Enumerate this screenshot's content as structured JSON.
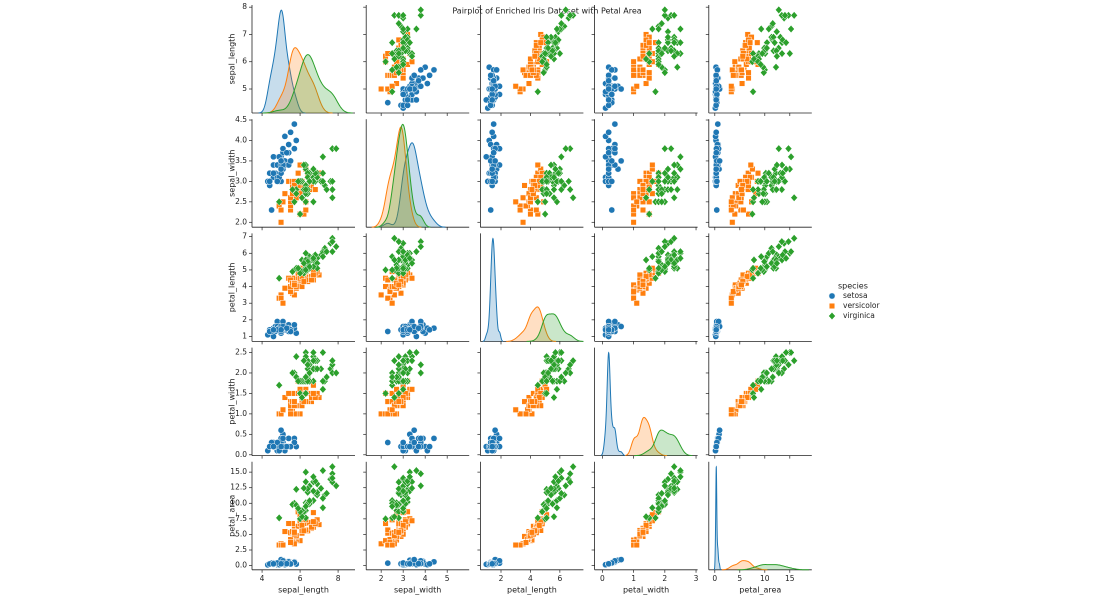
{
  "chart_data": {
    "type": "pairplot",
    "title": "Pairplot of Enriched Iris Dataset with Petal Area",
    "variables": [
      "sepal_length",
      "sepal_width",
      "petal_length",
      "petal_width",
      "petal_area"
    ],
    "axes": [
      {
        "xlim": [
          3.47,
          8.89
        ],
        "xticks": [
          4,
          6,
          8
        ],
        "ylim": [
          4.12,
          8.08
        ],
        "yticks": [
          5,
          6,
          7,
          8
        ]
      },
      {
        "xlim": [
          1.32,
          6.0
        ],
        "xticks": [
          2,
          3,
          4,
          5
        ],
        "ylim": [
          1.88,
          4.52
        ],
        "yticks": [
          {
            "value": 2,
            "label": "2.0"
          },
          2.5,
          {
            "value": 3,
            "label": "3.0"
          },
          3.5,
          {
            "value": 4,
            "label": "4.0"
          },
          4.5
        ]
      },
      {
        "xlim": [
          0.6,
          7.6
        ],
        "xticks": [
          2,
          4,
          6
        ],
        "ylim": [
          0.705,
          7.195
        ],
        "yticks": [
          1,
          2,
          3,
          4,
          5,
          6,
          7
        ]
      },
      {
        "xlim": [
          -0.25,
          3.05
        ],
        "xticks": [
          0,
          1,
          2,
          3
        ],
        "ylim": [
          -0.02,
          2.62
        ],
        "yticks": [
          {
            "value": 0,
            "label": "0.0"
          },
          0.5,
          {
            "value": 1,
            "label": "1.0"
          },
          1.5,
          {
            "value": 2,
            "label": "2.0"
          },
          2.5
        ]
      },
      {
        "xlim": [
          -1.2,
          19.4
        ],
        "xticks": [
          0,
          5,
          10,
          15
        ],
        "ylim": [
          -0.678,
          16.658
        ],
        "yticks": [
          {
            "value": 0,
            "label": "0.0"
          },
          2.5,
          {
            "value": 5,
            "label": "5.0"
          },
          7.5,
          {
            "value": 10,
            "label": "10.0"
          },
          12.5,
          {
            "value": 15,
            "label": "15.0"
          }
        ]
      }
    ],
    "legend_title": "species",
    "legend": "right",
    "series": [
      {
        "name": "setosa",
        "color": "#1f77b4",
        "marker": "circle",
        "values": [
          [
            5.1,
            4.9,
            4.7,
            4.6,
            5.0,
            5.4,
            4.6,
            5.0,
            4.4,
            4.9,
            5.4,
            4.8,
            4.8,
            4.3,
            5.8,
            5.7,
            5.4,
            5.1,
            5.7,
            5.1,
            5.4,
            5.1,
            4.6,
            5.1,
            4.8,
            5.0,
            5.0,
            5.2,
            5.2,
            4.7,
            4.8,
            5.4,
            5.2,
            5.5,
            4.9,
            5.0,
            5.5,
            4.9,
            4.4,
            5.1,
            5.0,
            4.5,
            4.4,
            5.0,
            5.1,
            4.8,
            5.1,
            4.6,
            5.3,
            5.0
          ],
          [
            3.5,
            3.0,
            3.2,
            3.1,
            3.6,
            3.9,
            3.4,
            3.4,
            2.9,
            3.1,
            3.7,
            3.4,
            3.0,
            3.0,
            4.0,
            4.4,
            3.9,
            3.5,
            3.8,
            3.8,
            3.4,
            3.7,
            3.6,
            3.3,
            3.4,
            3.0,
            3.4,
            3.5,
            3.4,
            3.2,
            3.1,
            3.4,
            4.1,
            4.2,
            3.1,
            3.2,
            3.5,
            3.6,
            3.0,
            3.4,
            3.5,
            2.3,
            3.2,
            3.5,
            3.8,
            3.0,
            3.8,
            3.2,
            3.7,
            3.3
          ],
          [
            1.4,
            1.4,
            1.3,
            1.5,
            1.4,
            1.7,
            1.4,
            1.5,
            1.4,
            1.5,
            1.5,
            1.6,
            1.4,
            1.1,
            1.2,
            1.5,
            1.3,
            1.4,
            1.7,
            1.5,
            1.7,
            1.5,
            1.0,
            1.7,
            1.9,
            1.6,
            1.6,
            1.5,
            1.4,
            1.6,
            1.6,
            1.5,
            1.5,
            1.4,
            1.5,
            1.2,
            1.3,
            1.4,
            1.3,
            1.5,
            1.3,
            1.3,
            1.3,
            1.6,
            1.9,
            1.4,
            1.6,
            1.4,
            1.5,
            1.4
          ],
          [
            0.2,
            0.2,
            0.2,
            0.2,
            0.2,
            0.4,
            0.3,
            0.2,
            0.2,
            0.1,
            0.2,
            0.2,
            0.1,
            0.1,
            0.2,
            0.4,
            0.4,
            0.3,
            0.3,
            0.3,
            0.2,
            0.4,
            0.2,
            0.5,
            0.2,
            0.2,
            0.4,
            0.2,
            0.2,
            0.2,
            0.2,
            0.4,
            0.1,
            0.2,
            0.2,
            0.2,
            0.2,
            0.1,
            0.2,
            0.2,
            0.3,
            0.3,
            0.2,
            0.6,
            0.4,
            0.3,
            0.2,
            0.2,
            0.2,
            0.2
          ],
          [
            0.28,
            0.28,
            0.26,
            0.3,
            0.28,
            0.68,
            0.42,
            0.3,
            0.28,
            0.15,
            0.3,
            0.32,
            0.14,
            0.11,
            0.24,
            0.6,
            0.52,
            0.42,
            0.51,
            0.45,
            0.34,
            0.6,
            0.2,
            0.85,
            0.38,
            0.32,
            0.64,
            0.3,
            0.28,
            0.32,
            0.32,
            0.6,
            0.15,
            0.28,
            0.3,
            0.24,
            0.26,
            0.14,
            0.26,
            0.3,
            0.39,
            0.39,
            0.26,
            0.96,
            0.76,
            0.42,
            0.32,
            0.28,
            0.3,
            0.28
          ]
        ]
      },
      {
        "name": "versicolor",
        "color": "#ff7f0e",
        "marker": "square",
        "values": [
          [
            7.0,
            6.4,
            6.9,
            5.5,
            6.5,
            5.7,
            6.3,
            4.9,
            6.6,
            5.2,
            5.0,
            5.9,
            6.0,
            6.1,
            5.6,
            6.7,
            5.6,
            5.8,
            6.2,
            5.6,
            5.9,
            6.1,
            6.3,
            6.1,
            6.4,
            6.6,
            6.8,
            6.7,
            6.0,
            5.7,
            5.5,
            5.5,
            5.8,
            6.0,
            5.4,
            6.0,
            6.7,
            6.3,
            5.6,
            5.5,
            5.5,
            6.1,
            5.8,
            5.0,
            5.6,
            5.7,
            5.7,
            6.2,
            5.1,
            5.7
          ],
          [
            3.2,
            3.2,
            3.1,
            2.3,
            2.8,
            2.8,
            3.3,
            2.4,
            2.9,
            2.7,
            2.0,
            3.0,
            2.2,
            2.9,
            2.9,
            3.1,
            3.0,
            2.7,
            2.2,
            2.5,
            3.2,
            2.8,
            2.5,
            2.8,
            2.9,
            3.0,
            2.8,
            3.0,
            2.9,
            2.6,
            2.4,
            2.4,
            2.7,
            2.7,
            3.0,
            3.4,
            3.1,
            2.3,
            3.0,
            2.5,
            2.6,
            3.0,
            2.6,
            2.3,
            2.7,
            3.0,
            2.9,
            2.9,
            2.5,
            2.8
          ],
          [
            4.7,
            4.5,
            4.9,
            4.0,
            4.6,
            4.5,
            4.7,
            3.3,
            4.6,
            3.9,
            3.5,
            4.2,
            4.0,
            4.7,
            3.6,
            4.4,
            4.5,
            4.1,
            4.5,
            3.9,
            4.8,
            4.0,
            4.9,
            4.7,
            4.3,
            4.4,
            4.8,
            5.0,
            4.5,
            3.5,
            3.8,
            3.7,
            3.9,
            5.1,
            4.5,
            4.5,
            4.7,
            4.4,
            4.1,
            4.0,
            4.4,
            4.6,
            4.0,
            3.3,
            4.2,
            4.2,
            4.2,
            4.3,
            3.0,
            4.1
          ],
          [
            1.4,
            1.5,
            1.5,
            1.3,
            1.5,
            1.3,
            1.6,
            1.0,
            1.3,
            1.4,
            1.0,
            1.5,
            1.0,
            1.4,
            1.3,
            1.4,
            1.5,
            1.0,
            1.5,
            1.1,
            1.8,
            1.3,
            1.5,
            1.2,
            1.3,
            1.4,
            1.4,
            1.7,
            1.5,
            1.0,
            1.1,
            1.0,
            1.2,
            1.6,
            1.5,
            1.6,
            1.5,
            1.3,
            1.3,
            1.3,
            1.2,
            1.4,
            1.2,
            1.0,
            1.3,
            1.2,
            1.3,
            1.3,
            1.1,
            1.3
          ],
          [
            6.58,
            6.75,
            7.35,
            5.2,
            6.9,
            5.85,
            7.52,
            3.3,
            5.98,
            5.46,
            3.5,
            6.3,
            4.0,
            6.58,
            4.68,
            6.16,
            6.75,
            4.1,
            6.75,
            4.29,
            8.64,
            5.2,
            7.35,
            5.64,
            5.59,
            6.16,
            6.72,
            8.5,
            6.75,
            3.5,
            4.18,
            3.7,
            4.68,
            8.16,
            6.75,
            7.2,
            7.05,
            5.72,
            5.33,
            5.2,
            5.28,
            6.44,
            4.8,
            3.3,
            5.46,
            5.04,
            5.46,
            5.59,
            3.3,
            5.33
          ]
        ]
      },
      {
        "name": "virginica",
        "color": "#2ca02c",
        "marker": "diamond",
        "values": [
          [
            6.3,
            5.8,
            7.1,
            6.3,
            6.5,
            7.6,
            4.9,
            7.3,
            6.7,
            7.2,
            6.5,
            6.4,
            6.8,
            5.7,
            5.8,
            6.4,
            6.5,
            7.7,
            7.7,
            6.0,
            6.9,
            5.6,
            7.7,
            6.3,
            6.7,
            7.2,
            6.2,
            6.1,
            6.4,
            7.2,
            7.4,
            7.9,
            6.4,
            6.3,
            6.1,
            7.7,
            6.3,
            6.4,
            6.0,
            6.9,
            6.7,
            6.9,
            5.8,
            6.8,
            6.7,
            6.7,
            6.3,
            6.5,
            6.2,
            5.9
          ],
          [
            3.3,
            2.7,
            3.0,
            2.9,
            3.0,
            3.0,
            2.5,
            2.9,
            2.5,
            3.6,
            3.2,
            2.7,
            3.0,
            2.5,
            2.8,
            3.2,
            3.0,
            3.8,
            2.6,
            2.2,
            3.2,
            2.8,
            2.8,
            2.7,
            3.3,
            3.2,
            2.8,
            3.0,
            2.8,
            3.0,
            2.8,
            3.8,
            2.8,
            2.8,
            2.6,
            3.0,
            3.4,
            3.1,
            3.0,
            3.1,
            3.1,
            3.1,
            2.7,
            3.2,
            3.3,
            3.0,
            2.5,
            3.0,
            3.4,
            3.0
          ],
          [
            6.0,
            5.1,
            5.9,
            5.6,
            5.8,
            6.6,
            4.5,
            6.3,
            5.8,
            6.1,
            5.1,
            5.3,
            5.5,
            5.0,
            5.1,
            5.3,
            5.5,
            6.7,
            6.9,
            5.0,
            5.7,
            4.9,
            6.7,
            4.9,
            5.7,
            6.0,
            4.8,
            4.9,
            5.6,
            5.8,
            6.1,
            6.4,
            5.6,
            5.1,
            5.6,
            6.1,
            5.6,
            5.5,
            4.8,
            5.4,
            5.6,
            5.1,
            5.1,
            5.9,
            5.7,
            5.2,
            5.0,
            5.2,
            5.4,
            5.1
          ],
          [
            2.5,
            1.9,
            2.1,
            1.8,
            2.2,
            2.1,
            1.7,
            1.8,
            1.8,
            2.5,
            2.0,
            1.9,
            2.1,
            2.0,
            2.4,
            2.3,
            1.8,
            2.2,
            2.3,
            1.5,
            2.3,
            2.0,
            2.0,
            1.8,
            2.1,
            1.8,
            1.8,
            1.8,
            2.1,
            1.6,
            1.9,
            2.0,
            2.2,
            1.5,
            1.4,
            2.3,
            2.4,
            1.8,
            1.8,
            2.1,
            2.4,
            2.3,
            1.9,
            2.3,
            2.5,
            2.3,
            1.9,
            2.0,
            2.3,
            1.8
          ],
          [
            15.0,
            9.69,
            12.39,
            10.08,
            12.76,
            13.86,
            7.65,
            11.34,
            10.44,
            15.25,
            10.2,
            10.07,
            11.55,
            10.0,
            12.24,
            12.19,
            9.9,
            14.74,
            15.87,
            7.5,
            13.11,
            9.8,
            13.4,
            8.82,
            11.97,
            10.8,
            8.64,
            8.82,
            11.76,
            9.28,
            11.59,
            12.8,
            12.32,
            7.65,
            7.84,
            14.03,
            13.44,
            9.9,
            8.64,
            11.34,
            13.44,
            11.73,
            9.69,
            13.57,
            14.25,
            11.96,
            9.5,
            10.4,
            12.42,
            9.18
          ]
        ]
      }
    ]
  }
}
